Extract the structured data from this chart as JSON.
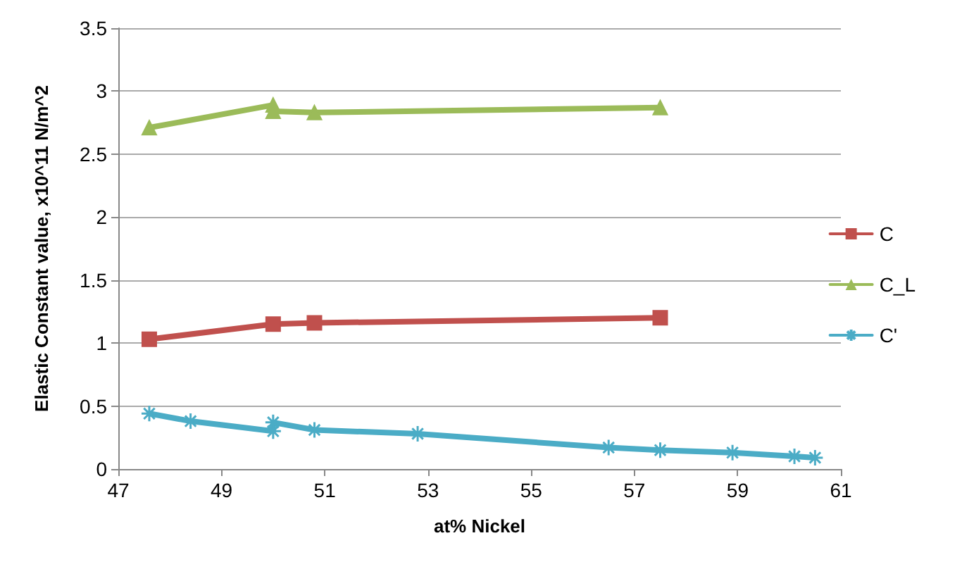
{
  "chart_data": {
    "type": "line",
    "xlabel": "at% Nickel",
    "ylabel": "Elastic Constant value, x10^11 N/m^2",
    "xlim": [
      47,
      61
    ],
    "xticks": [
      47,
      49,
      51,
      53,
      55,
      57,
      59,
      61
    ],
    "ylim": [
      0,
      3.5
    ],
    "yticks": [
      0,
      0.5,
      1,
      1.5,
      2,
      2.5,
      3,
      3.5
    ],
    "grid": "y",
    "legend": "right",
    "line_style": "solid",
    "series": [
      {
        "name": "C",
        "color": "#c0504d",
        "marker": "square",
        "x": [
          47.6,
          50,
          50.8,
          57.5
        ],
        "values": [
          1.03,
          1.15,
          1.16,
          1.2
        ]
      },
      {
        "name": "C_L",
        "color": "#9bbb59",
        "marker": "triangle",
        "x": [
          47.6,
          50,
          50,
          50.8,
          57.5
        ],
        "values": [
          2.71,
          2.89,
          2.84,
          2.83,
          2.87
        ]
      },
      {
        "name": "C'",
        "color": "#4bacc6",
        "marker": "cross",
        "x": [
          47.6,
          48.4,
          50,
          50,
          50.8,
          52.8,
          56.5,
          57.5,
          58.9,
          60.1,
          60.5
        ],
        "values": [
          0.44,
          0.38,
          0.3,
          0.37,
          0.31,
          0.28,
          0.17,
          0.15,
          0.13,
          0.1,
          0.09
        ]
      }
    ]
  }
}
